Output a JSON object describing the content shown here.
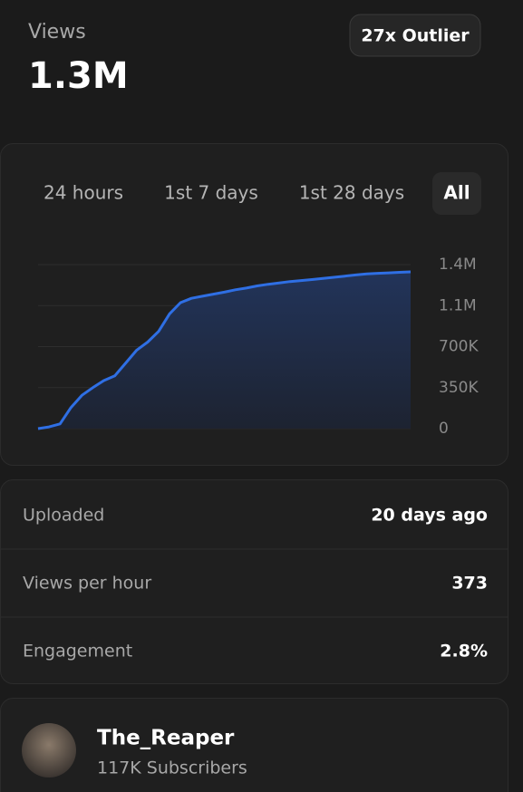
{
  "header": {
    "label": "Views",
    "value": "1.3M",
    "badge": "27x Outlier"
  },
  "tabs": {
    "items": [
      "24 hours",
      "1st 7 days",
      "1st 28 days",
      "All"
    ],
    "active": 3
  },
  "chart_data": {
    "type": "area",
    "color": "#2f6fe4",
    "grid": true,
    "values": [
      0,
      15000,
      40000,
      180000,
      285000,
      350000,
      410000,
      450000,
      560000,
      670000,
      739000,
      830000,
      980000,
      1075000,
      1112000,
      1130000,
      1148000,
      1165000,
      1185000,
      1200000,
      1218000,
      1232000,
      1243000,
      1255000,
      1264000,
      1272000,
      1282000,
      1292000,
      1302000,
      1312000,
      1320000,
      1326000,
      1330000,
      1334000,
      1338000
    ],
    "ylim": [
      0,
      1400000
    ],
    "yticks": [
      0,
      {
        "value": 350000,
        "label": "350K"
      },
      {
        "value": 700000,
        "label": "700K"
      },
      {
        "value": 1050000,
        "label": "1.1M"
      },
      {
        "value": 1400000,
        "label": "1.4M"
      }
    ]
  },
  "stats": {
    "rows": [
      [
        "Uploaded",
        "20 days ago"
      ],
      [
        "Views per hour",
        "373"
      ],
      [
        "Engagement",
        "2.8%"
      ]
    ]
  },
  "channel": {
    "name": "The_Reaper",
    "subscribers": "117K Subscribers"
  }
}
